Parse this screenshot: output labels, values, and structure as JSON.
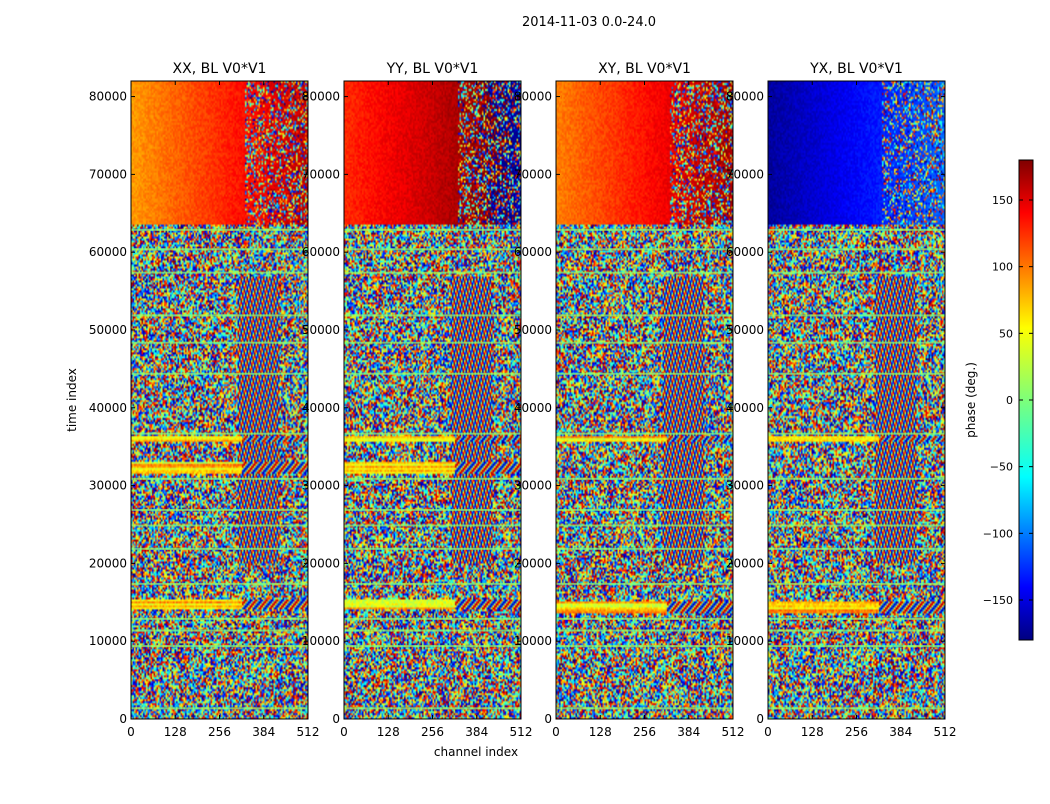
{
  "chart_data": {
    "type": "heatmap",
    "title": "2014-11-03 0.0-24.0",
    "xlabel": "channel index",
    "ylabel": "time index",
    "xlim": [
      0,
      512
    ],
    "ylim": [
      0,
      82000
    ],
    "x_ticks": [
      0,
      128,
      256,
      384,
      512
    ],
    "y_ticks": [
      0,
      10000,
      20000,
      30000,
      40000,
      50000,
      60000,
      70000,
      80000
    ],
    "colormap": "jet",
    "panels": [
      {
        "title": "XX, BL V0*V1",
        "smooth_hue": [
          80,
          160
        ],
        "bright_bands": [
          [
            14000,
            15500
          ],
          [
            31500,
            33000
          ],
          [
            35500,
            36500
          ]
        ]
      },
      {
        "title": "YY, BL V0*V1",
        "smooth_hue": [
          120,
          190
        ],
        "bright_bands": [
          [
            14000,
            15500
          ],
          [
            31500,
            33000
          ],
          [
            35500,
            36500
          ]
        ]
      },
      {
        "title": "XY, BL V0*V1",
        "smooth_hue": [
          90,
          170
        ],
        "bright_bands": [
          [
            13500,
            15000
          ],
          [
            35500,
            36500
          ]
        ]
      },
      {
        "title": "YX, BL V0*V1",
        "smooth_hue": [
          -170,
          -100
        ],
        "bright_bands": [
          [
            13500,
            15000
          ],
          [
            35500,
            36500
          ]
        ]
      }
    ],
    "colorbar": {
      "label": "phase (deg.)",
      "range": [
        -180,
        180
      ],
      "ticks": [
        -150,
        -100,
        -50,
        0,
        50,
        100,
        150
      ]
    }
  }
}
